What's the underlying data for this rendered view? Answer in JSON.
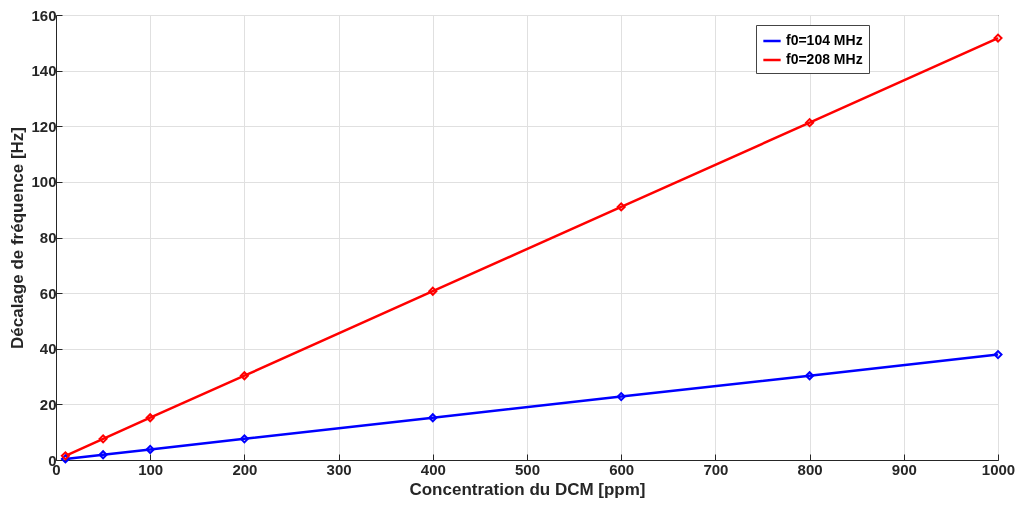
{
  "chart_data": {
    "type": "line",
    "xlabel": "Concentration du DCM [ppm]",
    "ylabel": "Décalage de fréquence [Hz]",
    "x": [
      10,
      50,
      100,
      200,
      400,
      600,
      800,
      1000
    ],
    "series": [
      {
        "name": "f0=104 MHz",
        "color": "#0000ff",
        "values": [
          0.4,
          1.9,
          3.8,
          7.6,
          15.2,
          22.8,
          30.3,
          37.9
        ]
      },
      {
        "name": "f0=208 MHz",
        "color": "#ff0000",
        "values": [
          1.5,
          7.6,
          15.2,
          30.3,
          60.7,
          91,
          121.3,
          151.7
        ]
      }
    ],
    "xlim": [
      0,
      1000
    ],
    "xticks": [
      0,
      100,
      200,
      300,
      400,
      500,
      600,
      700,
      800,
      900,
      1000
    ],
    "ylim": [
      0,
      160
    ],
    "yticks": [
      0,
      20,
      40,
      60,
      80,
      100,
      120,
      140,
      160
    ],
    "grid": true,
    "legend": "top right",
    "marker": "diamond",
    "line_style": "solid"
  }
}
